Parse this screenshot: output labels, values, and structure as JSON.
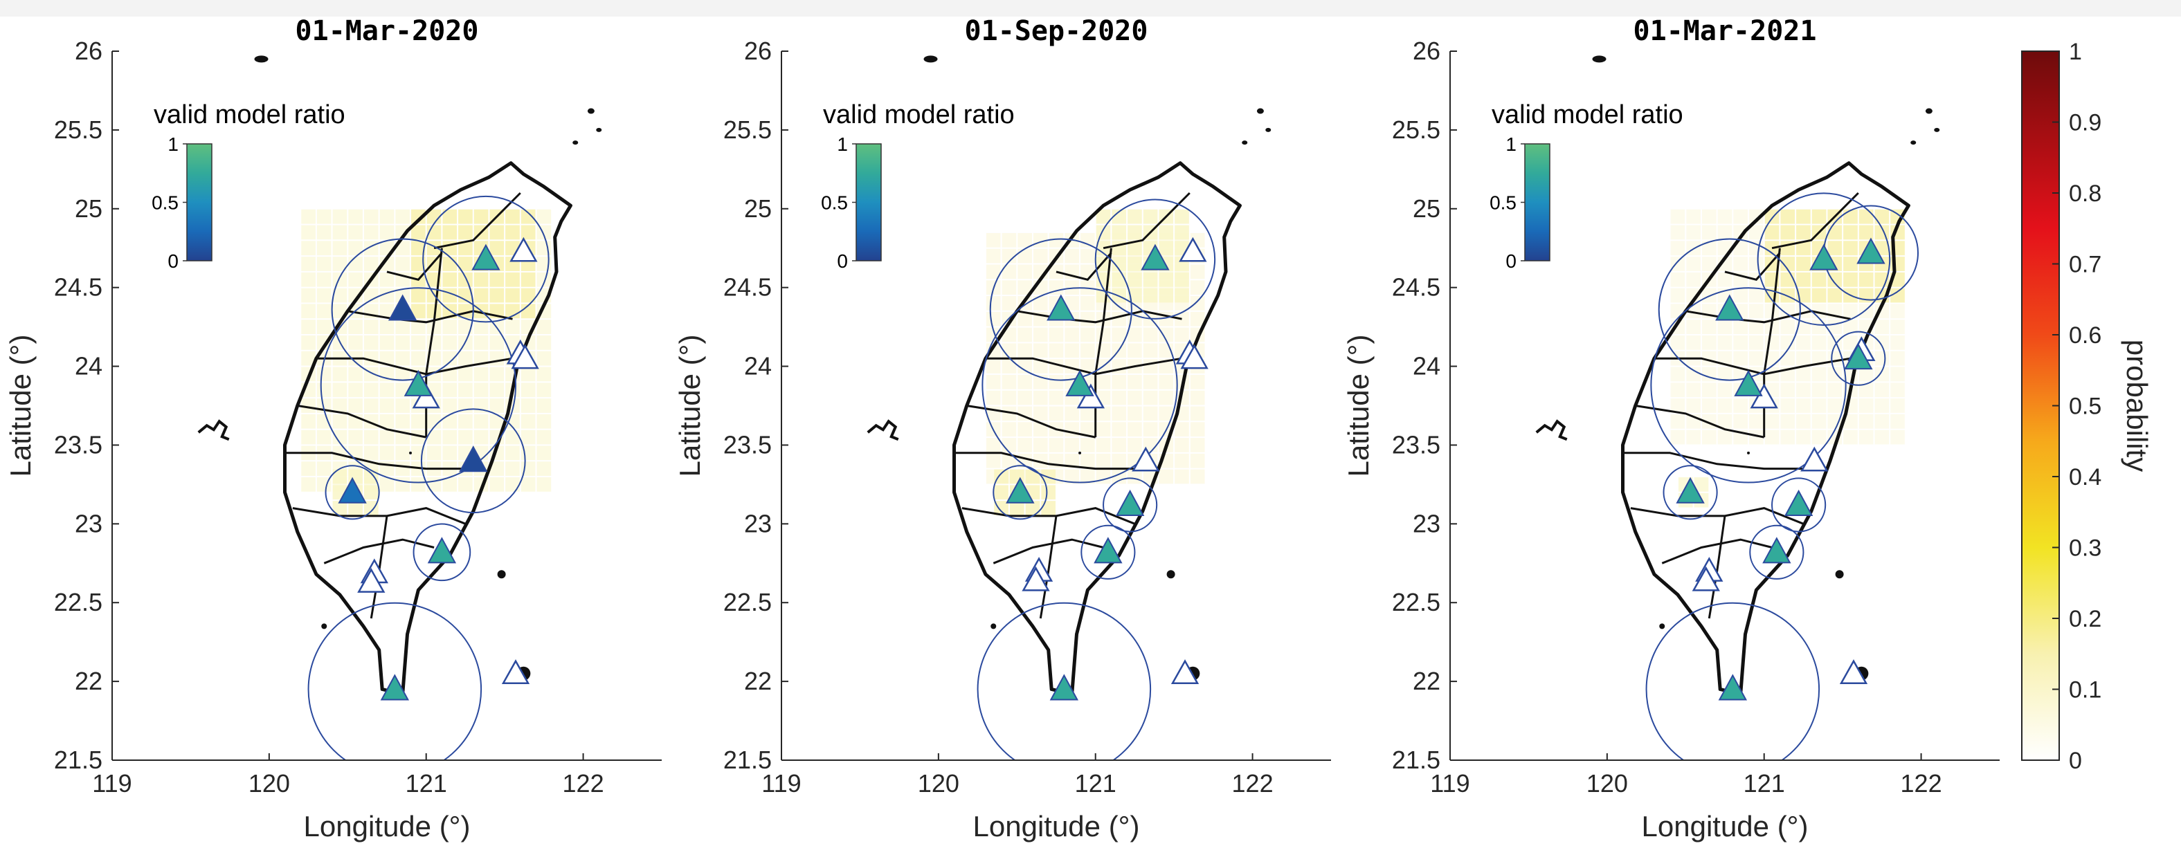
{
  "chart_data": [
    {
      "type": "map",
      "title": "01-Mar-2020",
      "xlabel": "Longitude (°)",
      "ylabel": "Latitude (°)",
      "xlim": [
        119,
        122.5
      ],
      "ylim": [
        21.5,
        26
      ],
      "xticks": [
        "119",
        "120",
        "121",
        "122"
      ],
      "yticks": [
        "21.5",
        "22",
        "22.5",
        "23",
        "23.5",
        "24",
        "24.5",
        "25",
        "25.5",
        "26"
      ],
      "inset_colorbar": {
        "title": "valid model ratio",
        "range": [
          0,
          1
        ],
        "ticks": [
          "0",
          "0.5",
          "1"
        ]
      },
      "stations": [
        {
          "lon": 121.38,
          "lat": 24.68,
          "ratio": 0.75,
          "radius_deg": 0.4
        },
        {
          "lon": 120.85,
          "lat": 24.36,
          "ratio": 0.05,
          "radius_deg": 0.45
        },
        {
          "lon": 120.95,
          "lat": 23.88,
          "ratio": 0.75,
          "radius_deg": 0.62
        },
        {
          "lon": 121.3,
          "lat": 23.4,
          "ratio": 0.05,
          "radius_deg": 0.33
        },
        {
          "lon": 120.53,
          "lat": 23.2,
          "ratio": 0.3,
          "radius_deg": 0.17
        },
        {
          "lon": 121.1,
          "lat": 22.82,
          "ratio": 0.75,
          "radius_deg": 0.18
        },
        {
          "lon": 120.8,
          "lat": 21.95,
          "ratio": 0.75,
          "radius_deg": 0.55
        }
      ],
      "invalid_stations": [
        {
          "lon": 121.62,
          "lat": 24.73
        },
        {
          "lon": 121.6,
          "lat": 24.08
        },
        {
          "lon": 121.63,
          "lat": 24.05
        },
        {
          "lon": 121.0,
          "lat": 23.8
        },
        {
          "lon": 120.67,
          "lat": 22.69
        },
        {
          "lon": 120.65,
          "lat": 22.63
        },
        {
          "lon": 121.57,
          "lat": 22.05
        }
      ],
      "probability_fields": [
        {
          "lon": [
            120.2,
            121.8
          ],
          "lat": [
            23.2,
            25.0
          ],
          "p": 0.06
        },
        {
          "lon": [
            120.9,
            121.65
          ],
          "lat": [
            24.3,
            25.0
          ],
          "p": 0.14
        },
        {
          "lon": [
            120.4,
            120.68
          ],
          "lat": [
            23.05,
            23.3
          ],
          "p": 0.1
        }
      ]
    },
    {
      "type": "map",
      "title": "01-Sep-2020",
      "xlabel": "Longitude (°)",
      "ylabel": "Latitude (°)",
      "xlim": [
        119,
        122.5
      ],
      "ylim": [
        21.5,
        26
      ],
      "xticks": [
        "119",
        "120",
        "121",
        "122"
      ],
      "yticks": [
        "21.5",
        "22",
        "22.5",
        "23",
        "23.5",
        "24",
        "24.5",
        "25",
        "25.5",
        "26"
      ],
      "inset_colorbar": {
        "title": "valid model ratio",
        "range": [
          0,
          1
        ],
        "ticks": [
          "0",
          "0.5",
          "1"
        ]
      },
      "stations": [
        {
          "lon": 121.38,
          "lat": 24.68,
          "ratio": 0.75,
          "radius_deg": 0.38
        },
        {
          "lon": 120.78,
          "lat": 24.36,
          "ratio": 0.75,
          "radius_deg": 0.45
        },
        {
          "lon": 120.9,
          "lat": 23.88,
          "ratio": 0.75,
          "radius_deg": 0.62
        },
        {
          "lon": 120.52,
          "lat": 23.2,
          "ratio": 0.75,
          "radius_deg": 0.17
        },
        {
          "lon": 121.22,
          "lat": 23.12,
          "ratio": 0.75,
          "radius_deg": 0.17
        },
        {
          "lon": 121.08,
          "lat": 22.82,
          "ratio": 0.75,
          "radius_deg": 0.17
        },
        {
          "lon": 120.8,
          "lat": 21.95,
          "ratio": 0.75,
          "radius_deg": 0.55
        }
      ],
      "invalid_stations": [
        {
          "lon": 121.62,
          "lat": 24.73
        },
        {
          "lon": 121.6,
          "lat": 24.08
        },
        {
          "lon": 121.63,
          "lat": 24.05
        },
        {
          "lon": 120.97,
          "lat": 23.8
        },
        {
          "lon": 121.32,
          "lat": 23.4
        },
        {
          "lon": 120.64,
          "lat": 22.7
        },
        {
          "lon": 120.62,
          "lat": 22.64
        },
        {
          "lon": 121.57,
          "lat": 22.05
        }
      ],
      "probability_fields": [
        {
          "lon": [
            120.3,
            121.7
          ],
          "lat": [
            23.25,
            24.85
          ],
          "p": 0.05
        },
        {
          "lon": [
            121.0,
            121.6
          ],
          "lat": [
            24.4,
            24.95
          ],
          "p": 0.1
        },
        {
          "lon": [
            120.35,
            120.7
          ],
          "lat": [
            23.05,
            23.3
          ],
          "p": 0.12
        }
      ]
    },
    {
      "type": "map",
      "title": "01-Mar-2021",
      "xlabel": "Longitude (°)",
      "ylabel": "Latitude (°)",
      "xlim": [
        119,
        122.5
      ],
      "ylim": [
        21.5,
        26
      ],
      "xticks": [
        "119",
        "120",
        "121",
        "122"
      ],
      "yticks": [
        "21.5",
        "22",
        "22.5",
        "23",
        "23.5",
        "24",
        "24.5",
        "25",
        "25.5",
        "26"
      ],
      "inset_colorbar": {
        "title": "valid model ratio",
        "range": [
          0,
          1
        ],
        "ticks": [
          "0",
          "0.5",
          "1"
        ]
      },
      "stations": [
        {
          "lon": 121.38,
          "lat": 24.68,
          "ratio": 0.75,
          "radius_deg": 0.42
        },
        {
          "lon": 121.68,
          "lat": 24.72,
          "ratio": 0.75,
          "radius_deg": 0.3
        },
        {
          "lon": 120.78,
          "lat": 24.36,
          "ratio": 0.75,
          "radius_deg": 0.45
        },
        {
          "lon": 120.9,
          "lat": 23.88,
          "ratio": 0.75,
          "radius_deg": 0.62
        },
        {
          "lon": 121.6,
          "lat": 24.05,
          "ratio": 0.75,
          "radius_deg": 0.17
        },
        {
          "lon": 120.53,
          "lat": 23.2,
          "ratio": 0.75,
          "radius_deg": 0.17
        },
        {
          "lon": 121.22,
          "lat": 23.12,
          "ratio": 0.75,
          "radius_deg": 0.17
        },
        {
          "lon": 121.08,
          "lat": 22.82,
          "ratio": 0.75,
          "radius_deg": 0.17
        },
        {
          "lon": 120.8,
          "lat": 21.95,
          "ratio": 0.75,
          "radius_deg": 0.55
        }
      ],
      "invalid_stations": [
        {
          "lon": 121.62,
          "lat": 24.1
        },
        {
          "lon": 121.0,
          "lat": 23.8
        },
        {
          "lon": 121.32,
          "lat": 23.4
        },
        {
          "lon": 120.65,
          "lat": 22.7
        },
        {
          "lon": 120.63,
          "lat": 22.64
        },
        {
          "lon": 121.57,
          "lat": 22.05
        }
      ],
      "probability_fields": [
        {
          "lon": [
            120.4,
            121.85
          ],
          "lat": [
            23.5,
            25.0
          ],
          "p": 0.04
        },
        {
          "lon": [
            121.0,
            121.85
          ],
          "lat": [
            24.4,
            25.0
          ],
          "p": 0.14
        },
        {
          "lon": [
            120.45,
            120.65
          ],
          "lat": [
            23.1,
            23.3
          ],
          "p": 0.08
        }
      ]
    }
  ],
  "probability_colorbar": {
    "label": "probability",
    "range": [
      0,
      1
    ],
    "ticks": [
      "0",
      "0.1",
      "0.2",
      "0.3",
      "0.4",
      "0.5",
      "0.6",
      "0.7",
      "0.8",
      "0.9",
      "1"
    ]
  },
  "colors": {
    "station_low": "#23428f",
    "station_high": "#5fbf7f",
    "circle_stroke": "#2b4a9e",
    "map_stroke": "#111111"
  }
}
